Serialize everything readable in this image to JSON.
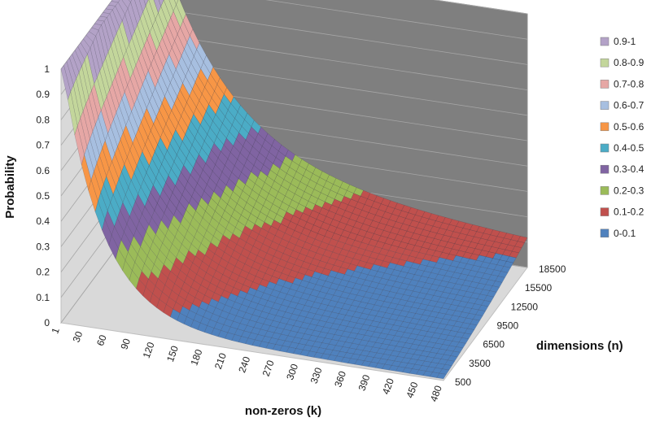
{
  "chart_data": {
    "type": "surface",
    "xlabel": "non-zeros (k)",
    "ylabel": "Probability",
    "zlabel": "dimensions (n)",
    "x_ticks": [
      "1",
      "30",
      "60",
      "90",
      "120",
      "150",
      "180",
      "210",
      "240",
      "270",
      "300",
      "330",
      "360",
      "390",
      "420",
      "450",
      "480"
    ],
    "depth_ticks": [
      "500",
      "3500",
      "6500",
      "9500",
      "12500",
      "15500",
      "18500"
    ],
    "y_ticks": [
      "0",
      "0.1",
      "0.2",
      "0.3",
      "0.4",
      "0.5",
      "0.6",
      "0.7",
      "0.8",
      "0.9",
      "1"
    ],
    "ylim": [
      0,
      1
    ],
    "xlim": [
      1,
      480
    ],
    "depth_lim": [
      500,
      18500
    ],
    "legend_position": "right",
    "bands": [
      {
        "name": "0.9-1",
        "color": "#b3a2c7"
      },
      {
        "name": "0.8-0.9",
        "color": "#c3d69b"
      },
      {
        "name": "0.7-0.8",
        "color": "#e6a7a5"
      },
      {
        "name": "0.6-0.7",
        "color": "#a7bfe0"
      },
      {
        "name": "0.5-0.6",
        "color": "#f79646"
      },
      {
        "name": "0.4-0.5",
        "color": "#4bacc6"
      },
      {
        "name": "0.3-0.4",
        "color": "#8064a2"
      },
      {
        "name": "0.2-0.3",
        "color": "#9bbb59"
      },
      {
        "name": "0.1-0.2",
        "color": "#c0504d"
      },
      {
        "name": "0-0.1",
        "color": "#4f81bd"
      }
    ]
  }
}
